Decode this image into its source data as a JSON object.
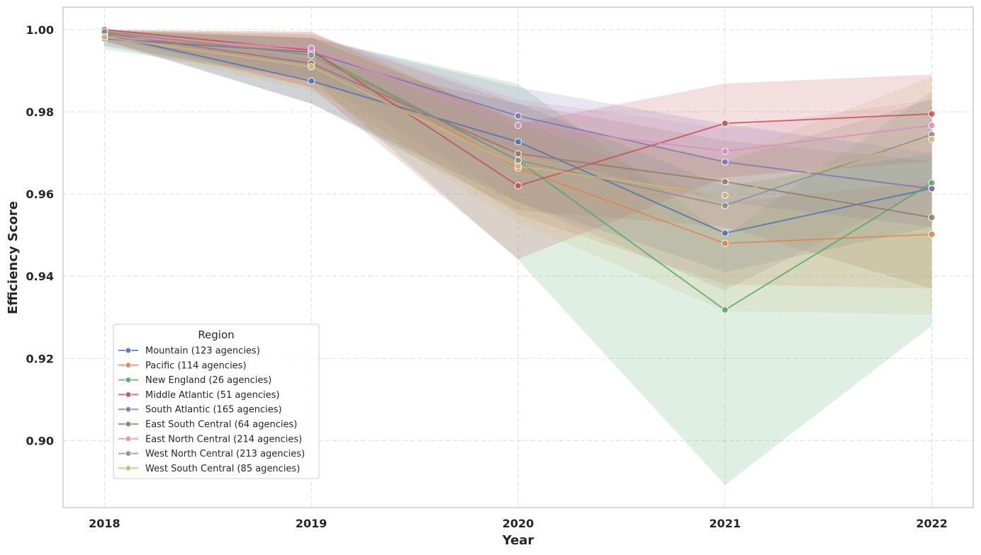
{
  "chart_data": {
    "type": "line",
    "xlabel": "Year",
    "ylabel": "Efficiency Score",
    "x": [
      2018,
      2019,
      2020,
      2021,
      2022
    ],
    "x_tick_labels": [
      "2018",
      "2019",
      "2020",
      "2021",
      "2022"
    ],
    "ylim": [
      0.8837,
      1.0055
    ],
    "y_ticks": [
      0.9,
      0.92,
      0.94,
      0.96,
      0.98,
      1.0
    ],
    "y_tick_labels": [
      "0.90",
      "0.92",
      "0.94",
      "0.96",
      "0.98",
      "1.00"
    ],
    "grid": true,
    "legend": {
      "title": "Region",
      "placement": "lower-left"
    },
    "series": [
      {
        "name": "Mountain (123 agencies)",
        "color": "#4c72b0",
        "values": [
          0.9988,
          0.9875,
          0.9727,
          0.9505,
          0.9614
        ],
        "lower": [
          0.9972,
          0.982,
          0.958,
          0.941,
          0.952
        ],
        "upper": [
          0.9998,
          0.993,
          0.982,
          0.962,
          0.97
        ]
      },
      {
        "name": "Pacific (114 agencies)",
        "color": "#dd8452",
        "values": [
          0.9985,
          0.9945,
          0.9663,
          0.948,
          0.9502
        ],
        "lower": [
          0.997,
          0.986,
          0.955,
          0.938,
          0.937
        ],
        "upper": [
          0.9998,
          0.998,
          0.978,
          0.958,
          0.963
        ]
      },
      {
        "name": "New England (26 agencies)",
        "color": "#55a868",
        "values": [
          0.9978,
          0.9945,
          0.9681,
          0.9318,
          0.9627
        ],
        "lower": [
          0.9952,
          0.988,
          0.944,
          0.8892,
          0.928
        ],
        "upper": [
          0.9998,
          0.998,
          0.9868,
          0.95,
          0.985
        ]
      },
      {
        "name": "Middle Atlantic (51 agencies)",
        "color": "#c44e52",
        "values": [
          1.0,
          0.995,
          0.962,
          0.9772,
          0.9795
        ],
        "lower": [
          0.9985,
          0.986,
          0.9442,
          0.964,
          0.968
        ],
        "upper": [
          1.0,
          0.9995,
          0.9771,
          0.9869,
          0.9891
        ]
      },
      {
        "name": "South Atlantic (165 agencies)",
        "color": "#8172b3",
        "values": [
          0.9978,
          0.9945,
          0.979,
          0.9678,
          0.9613
        ],
        "lower": [
          0.996,
          0.988,
          0.97,
          0.958,
          0.952
        ],
        "upper": [
          0.9995,
          0.998,
          0.986,
          0.977,
          0.97
        ]
      },
      {
        "name": "East South Central (64 agencies)",
        "color": "#937860",
        "values": [
          0.9992,
          0.9918,
          0.9698,
          0.963,
          0.9543
        ],
        "lower": [
          0.9975,
          0.982,
          0.956,
          0.952,
          0.937
        ],
        "upper": [
          1.0,
          0.9988,
          0.982,
          0.973,
          0.968
        ]
      },
      {
        "name": "East North Central (214 agencies)",
        "color": "#da8bc3",
        "values": [
          0.9983,
          0.9955,
          0.9767,
          0.9704,
          0.9767
        ],
        "lower": [
          0.997,
          0.991,
          0.969,
          0.964,
          0.97
        ],
        "upper": [
          0.9995,
          0.999,
          0.983,
          0.976,
          0.983
        ]
      },
      {
        "name": "West North Central (213 agencies)",
        "color": "#8c8c8c",
        "values": [
          0.9995,
          0.9938,
          0.9682,
          0.9572,
          0.9745
        ],
        "lower": [
          0.998,
          0.988,
          0.958,
          0.9365,
          0.962
        ],
        "upper": [
          1.0,
          0.998,
          0.978,
          0.968,
          0.983
        ]
      },
      {
        "name": "West South Central (85 agencies)",
        "color": "#ccb974",
        "values": [
          0.9982,
          0.991,
          0.9668,
          0.9597,
          0.9733
        ],
        "lower": [
          0.9962,
          0.985,
          0.953,
          0.9315,
          0.9307
        ],
        "upper": [
          0.9998,
          0.9995,
          0.978,
          0.969,
          0.9885
        ]
      }
    ]
  }
}
